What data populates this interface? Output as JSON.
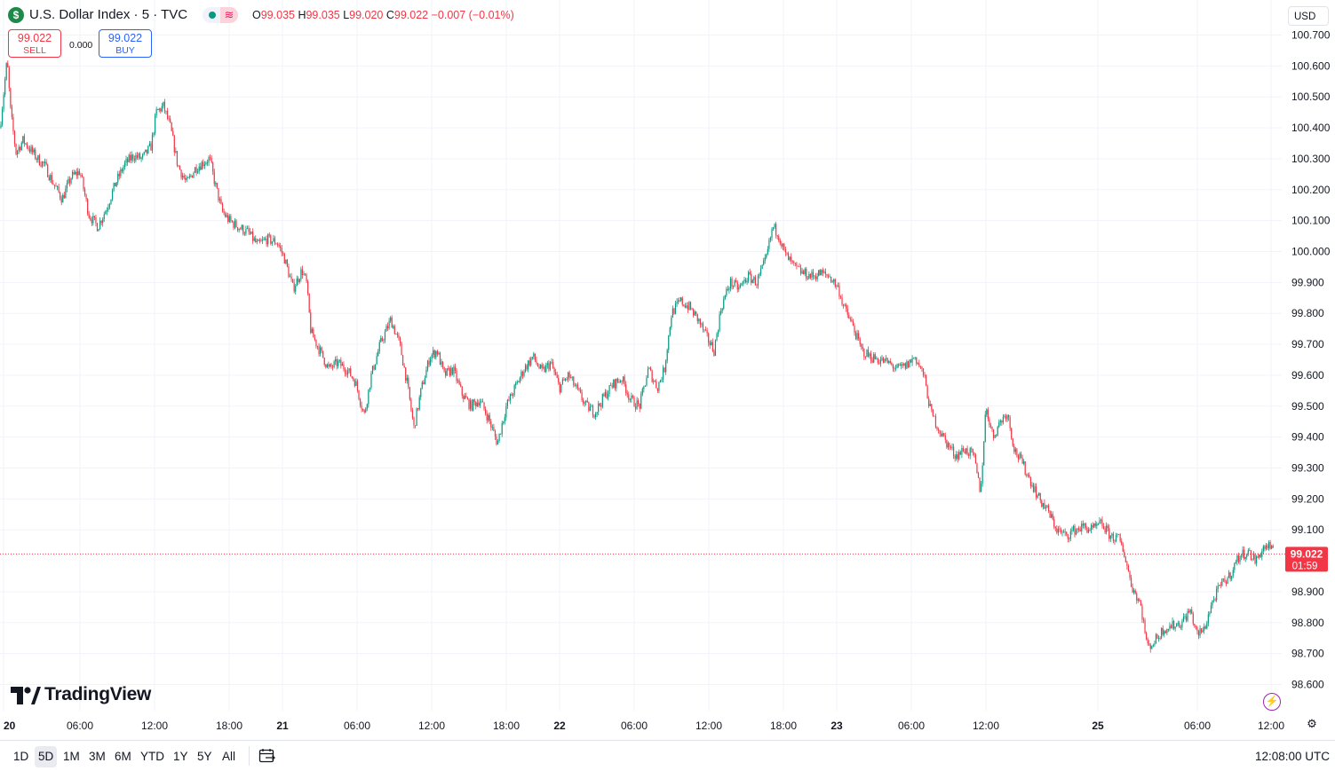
{
  "header": {
    "symbol_badge": "$",
    "title": "U.S. Dollar Index · 5 · TVC",
    "status_wave": "≋",
    "ohlc": {
      "o_label": "O",
      "o_value": "99.035",
      "h_label": "H",
      "h_value": "99.035",
      "l_label": "L",
      "l_value": "99.020",
      "c_label": "C",
      "c_value": "99.022",
      "change": "−0.007 (−0.01%)"
    },
    "sell": {
      "price": "99.022",
      "label": "SELL"
    },
    "spread": "0.000",
    "buy": {
      "price": "99.022",
      "label": "BUY"
    },
    "currency": "USD"
  },
  "icons": {
    "logo": "tradingview-logo-icon",
    "bolt": "lightning-icon",
    "settings": "gear-icon",
    "calendar": "calendar-range-icon"
  },
  "colors": {
    "up": "#089981",
    "down": "#f23645",
    "last_price_bg": "#f23645",
    "grid": "#f0f3fa"
  },
  "logo_text": "TradingView",
  "bottom_bar": {
    "ranges": [
      "1D",
      "5D",
      "1M",
      "3M",
      "6M",
      "YTD",
      "1Y",
      "5Y",
      "All"
    ],
    "active_range": "5D",
    "clock": "12:08:00 UTC"
  },
  "chart_data": {
    "type": "candlestick",
    "title": "U.S. Dollar Index",
    "interval": "5",
    "ylim": [
      98.55,
      100.75
    ],
    "y_ticks": [
      "100.700",
      "100.600",
      "100.500",
      "100.400",
      "100.300",
      "100.200",
      "100.100",
      "100.000",
      "99.900",
      "99.800",
      "99.700",
      "99.600",
      "99.500",
      "99.400",
      "99.300",
      "99.200",
      "99.100",
      "98.900",
      "98.800",
      "98.700",
      "98.600"
    ],
    "x_ticks": [
      {
        "label": "20",
        "bold": true
      },
      {
        "label": "06:00",
        "bold": false
      },
      {
        "label": "12:00",
        "bold": false
      },
      {
        "label": "18:00",
        "bold": false
      },
      {
        "label": "21",
        "bold": true
      },
      {
        "label": "06:00",
        "bold": false
      },
      {
        "label": "12:00",
        "bold": false
      },
      {
        "label": "18:00",
        "bold": false
      },
      {
        "label": "22",
        "bold": true
      },
      {
        "label": "06:00",
        "bold": false
      },
      {
        "label": "12:00",
        "bold": false
      },
      {
        "label": "18:00",
        "bold": false
      },
      {
        "label": "23",
        "bold": true
      },
      {
        "label": "06:00",
        "bold": false
      },
      {
        "label": "12:00",
        "bold": false
      },
      {
        "label": "25",
        "bold": true
      },
      {
        "label": "06:00",
        "bold": false
      },
      {
        "label": "12:00",
        "bold": false
      }
    ],
    "last_price": "99.022",
    "countdown": "01:59",
    "approx_close_path": [
      [
        0,
        100.4
      ],
      [
        8,
        100.62
      ],
      [
        12,
        100.45
      ],
      [
        18,
        100.32
      ],
      [
        26,
        100.36
      ],
      [
        34,
        100.33
      ],
      [
        42,
        100.3
      ],
      [
        50,
        100.28
      ],
      [
        60,
        100.22
      ],
      [
        70,
        100.17
      ],
      [
        80,
        100.24
      ],
      [
        90,
        100.26
      ],
      [
        100,
        100.12
      ],
      [
        110,
        100.08
      ],
      [
        120,
        100.14
      ],
      [
        130,
        100.22
      ],
      [
        140,
        100.28
      ],
      [
        150,
        100.31
      ],
      [
        160,
        100.3
      ],
      [
        170,
        100.34
      ],
      [
        176,
        100.45
      ],
      [
        184,
        100.47
      ],
      [
        192,
        100.4
      ],
      [
        200,
        100.28
      ],
      [
        210,
        100.22
      ],
      [
        220,
        100.27
      ],
      [
        230,
        100.29
      ],
      [
        236,
        100.3
      ],
      [
        242,
        100.22
      ],
      [
        250,
        100.13
      ],
      [
        258,
        100.1
      ],
      [
        268,
        100.08
      ],
      [
        280,
        100.06
      ],
      [
        290,
        100.02
      ],
      [
        300,
        100.04
      ],
      [
        312,
        100.03
      ],
      [
        320,
        99.98
      ],
      [
        330,
        99.88
      ],
      [
        340,
        99.94
      ],
      [
        345,
        99.9
      ],
      [
        350,
        99.74
      ],
      [
        360,
        99.68
      ],
      [
        370,
        99.62
      ],
      [
        380,
        99.64
      ],
      [
        390,
        99.62
      ],
      [
        400,
        99.58
      ],
      [
        410,
        99.47
      ],
      [
        418,
        99.6
      ],
      [
        428,
        99.7
      ],
      [
        440,
        99.78
      ],
      [
        450,
        99.7
      ],
      [
        458,
        99.58
      ],
      [
        466,
        99.43
      ],
      [
        474,
        99.55
      ],
      [
        484,
        99.66
      ],
      [
        492,
        99.68
      ],
      [
        500,
        99.6
      ],
      [
        510,
        99.62
      ],
      [
        520,
        99.54
      ],
      [
        530,
        99.5
      ],
      [
        540,
        99.52
      ],
      [
        550,
        99.46
      ],
      [
        560,
        99.38
      ],
      [
        570,
        99.5
      ],
      [
        580,
        99.56
      ],
      [
        590,
        99.62
      ],
      [
        600,
        99.66
      ],
      [
        610,
        99.61
      ],
      [
        620,
        99.64
      ],
      [
        630,
        99.56
      ],
      [
        640,
        99.6
      ],
      [
        650,
        99.55
      ],
      [
        660,
        99.5
      ],
      [
        670,
        99.48
      ],
      [
        680,
        99.53
      ],
      [
        690,
        99.57
      ],
      [
        700,
        99.59
      ],
      [
        710,
        99.52
      ],
      [
        720,
        99.5
      ],
      [
        730,
        99.62
      ],
      [
        740,
        99.56
      ],
      [
        748,
        99.62
      ],
      [
        756,
        99.8
      ],
      [
        766,
        99.84
      ],
      [
        776,
        99.82
      ],
      [
        786,
        99.78
      ],
      [
        796,
        99.72
      ],
      [
        804,
        99.68
      ],
      [
        812,
        99.82
      ],
      [
        822,
        99.9
      ],
      [
        832,
        99.88
      ],
      [
        842,
        99.92
      ],
      [
        852,
        99.9
      ],
      [
        862,
        99.97
      ],
      [
        870,
        100.08
      ],
      [
        876,
        100.06
      ],
      [
        884,
        99.99
      ],
      [
        894,
        99.95
      ],
      [
        904,
        99.93
      ],
      [
        914,
        99.92
      ],
      [
        924,
        99.93
      ],
      [
        934,
        99.92
      ],
      [
        944,
        99.88
      ],
      [
        950,
        99.82
      ],
      [
        960,
        99.76
      ],
      [
        970,
        99.68
      ],
      [
        980,
        99.66
      ],
      [
        990,
        99.65
      ],
      [
        1000,
        99.64
      ],
      [
        1010,
        99.62
      ],
      [
        1020,
        99.63
      ],
      [
        1030,
        99.66
      ],
      [
        1040,
        99.6
      ],
      [
        1048,
        99.48
      ],
      [
        1058,
        99.42
      ],
      [
        1066,
        99.38
      ],
      [
        1076,
        99.34
      ],
      [
        1086,
        99.36
      ],
      [
        1096,
        99.34
      ],
      [
        1104,
        99.22
      ],
      [
        1110,
        99.5
      ],
      [
        1118,
        99.4
      ],
      [
        1126,
        99.45
      ],
      [
        1134,
        99.48
      ],
      [
        1142,
        99.36
      ],
      [
        1150,
        99.32
      ],
      [
        1160,
        99.26
      ],
      [
        1170,
        99.2
      ],
      [
        1180,
        99.16
      ],
      [
        1190,
        99.1
      ],
      [
        1200,
        99.08
      ],
      [
        1210,
        99.1
      ],
      [
        1220,
        99.11
      ],
      [
        1230,
        99.1
      ],
      [
        1240,
        99.12
      ],
      [
        1250,
        99.08
      ],
      [
        1260,
        99.07
      ],
      [
        1266,
        99.02
      ],
      [
        1274,
        98.92
      ],
      [
        1284,
        98.86
      ],
      [
        1292,
        98.72
      ],
      [
        1300,
        98.74
      ],
      [
        1310,
        98.78
      ],
      [
        1320,
        98.79
      ],
      [
        1330,
        98.8
      ],
      [
        1340,
        98.84
      ],
      [
        1348,
        98.76
      ],
      [
        1356,
        98.78
      ],
      [
        1364,
        98.86
      ],
      [
        1374,
        98.92
      ],
      [
        1384,
        98.95
      ],
      [
        1394,
        99.01
      ],
      [
        1404,
        99.03
      ],
      [
        1414,
        99.0
      ],
      [
        1422,
        99.04
      ],
      [
        1428,
        99.05
      ],
      [
        1434,
        99.022
      ]
    ]
  }
}
